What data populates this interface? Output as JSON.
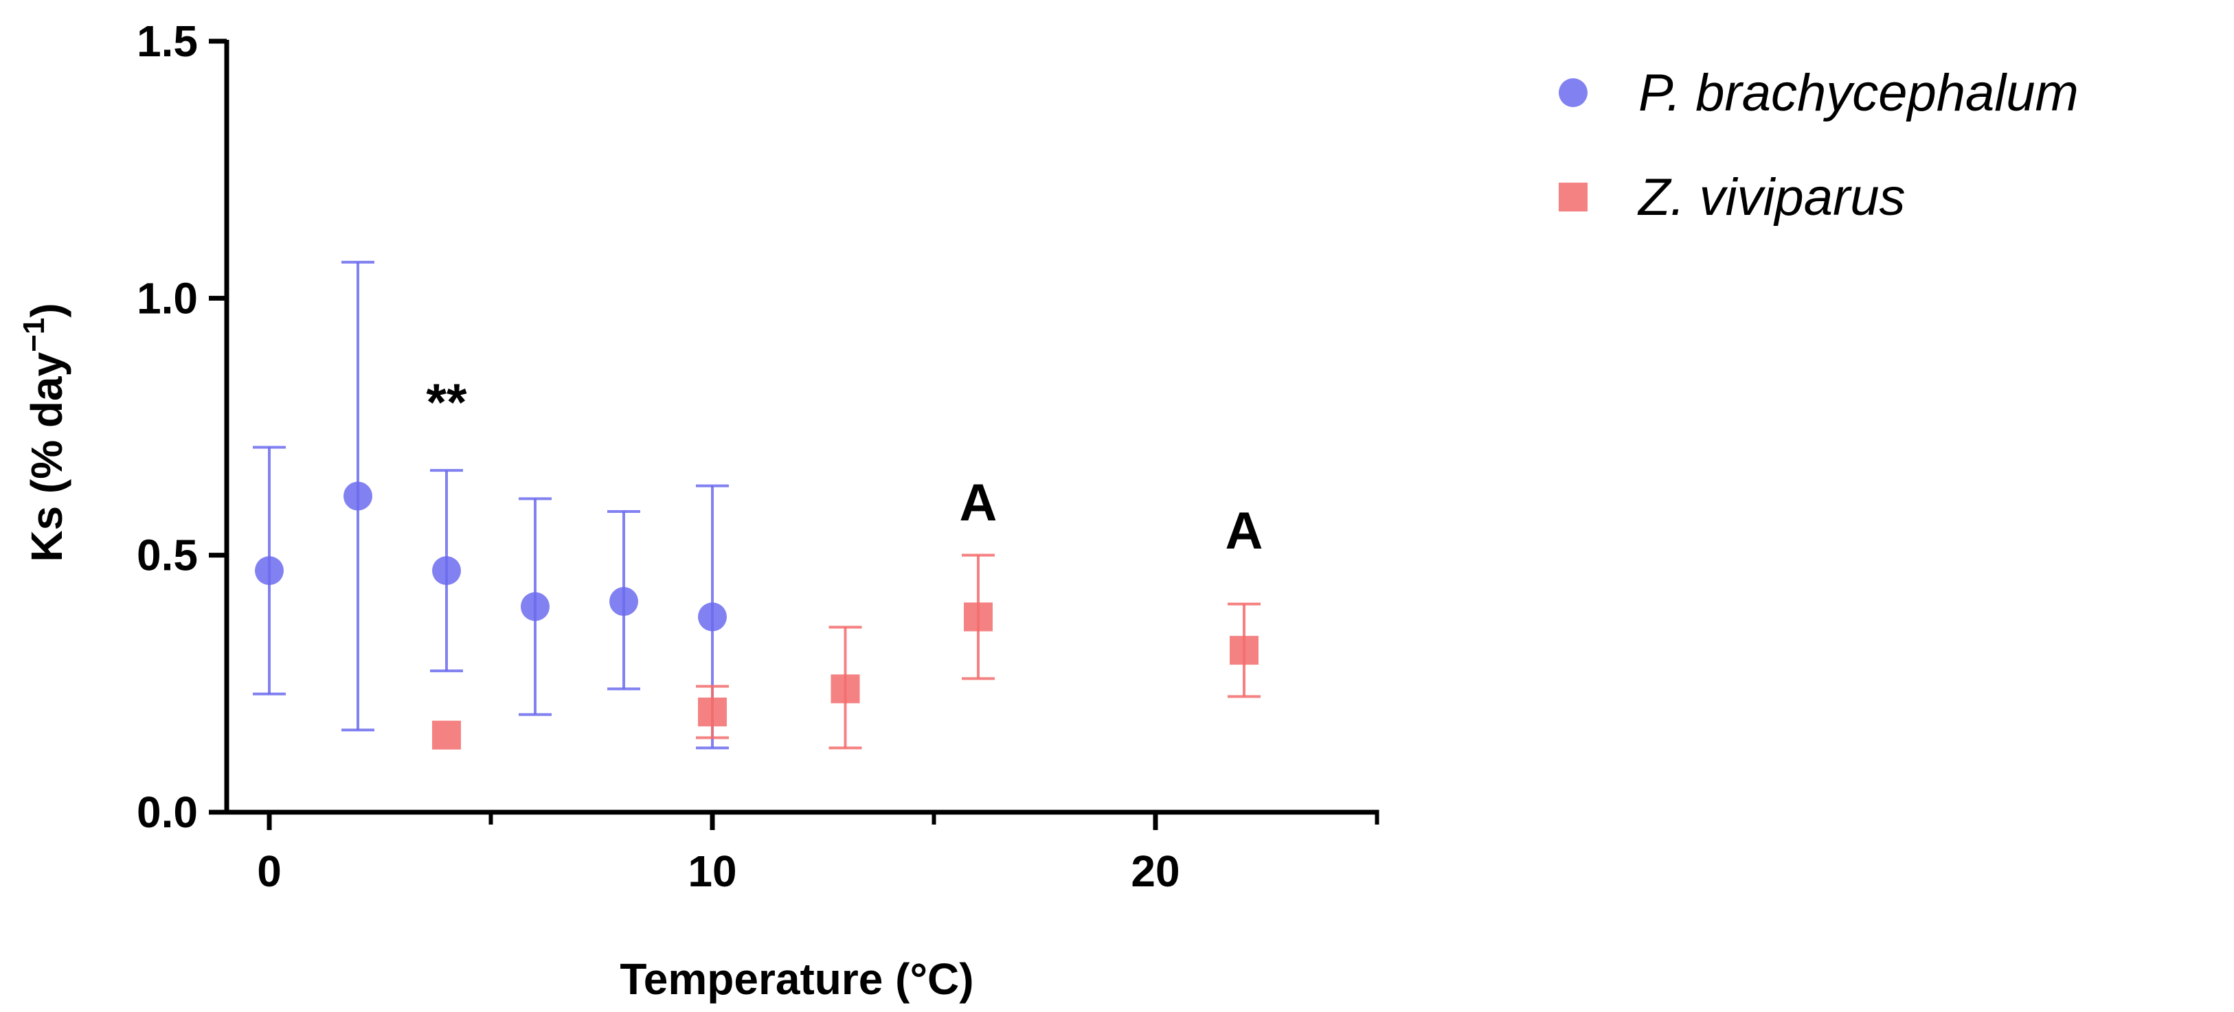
{
  "chart_data": {
    "type": "scatter",
    "xlabel": "Temperature (°C)",
    "ylabel_main": "Ks (% day",
    "ylabel_sup": "−1",
    "ylabel_close": ")",
    "xlim": [
      -1,
      25
    ],
    "ylim": [
      0,
      1.5
    ],
    "xticks_major": [
      0,
      10,
      20
    ],
    "xticks_minor": [
      5,
      15,
      25
    ],
    "xtick_labels": [
      "0",
      "10",
      "20"
    ],
    "yticks": [
      0,
      0.5,
      1.0,
      1.5
    ],
    "ytick_labels": [
      "0.0",
      "0.5",
      "1.0",
      "1.5"
    ],
    "series": [
      {
        "name": "P. brachycephalum",
        "marker": "circle",
        "color": "#6b6bef",
        "points": [
          {
            "x": 0,
            "y": 0.47,
            "lo": 0.23,
            "hi": 0.71
          },
          {
            "x": 2,
            "y": 0.615,
            "lo": 0.16,
            "hi": 1.07
          },
          {
            "x": 4,
            "y": 0.47,
            "lo": 0.275,
            "hi": 0.665
          },
          {
            "x": 6,
            "y": 0.4,
            "lo": 0.19,
            "hi": 0.61
          },
          {
            "x": 8,
            "y": 0.41,
            "lo": 0.24,
            "hi": 0.585
          },
          {
            "x": 10,
            "y": 0.38,
            "lo": 0.125,
            "hi": 0.635
          }
        ]
      },
      {
        "name": "Z. viviparus",
        "marker": "square",
        "color": "#f36c6c",
        "points": [
          {
            "x": 4,
            "y": 0.15,
            "lo": null,
            "hi": null
          },
          {
            "x": 10,
            "y": 0.195,
            "lo": 0.145,
            "hi": 0.245
          },
          {
            "x": 13,
            "y": 0.24,
            "lo": 0.125,
            "hi": 0.36
          },
          {
            "x": 16,
            "y": 0.38,
            "lo": 0.26,
            "hi": 0.5
          },
          {
            "x": 22,
            "y": 0.315,
            "lo": 0.225,
            "hi": 0.405
          }
        ]
      }
    ],
    "annotations": [
      {
        "text": "**",
        "x": 4,
        "y": 0.8
      },
      {
        "text": "A",
        "x": 16,
        "y": 0.605
      },
      {
        "text": "A",
        "x": 22,
        "y": 0.55
      }
    ],
    "legend_position": "top-right"
  }
}
